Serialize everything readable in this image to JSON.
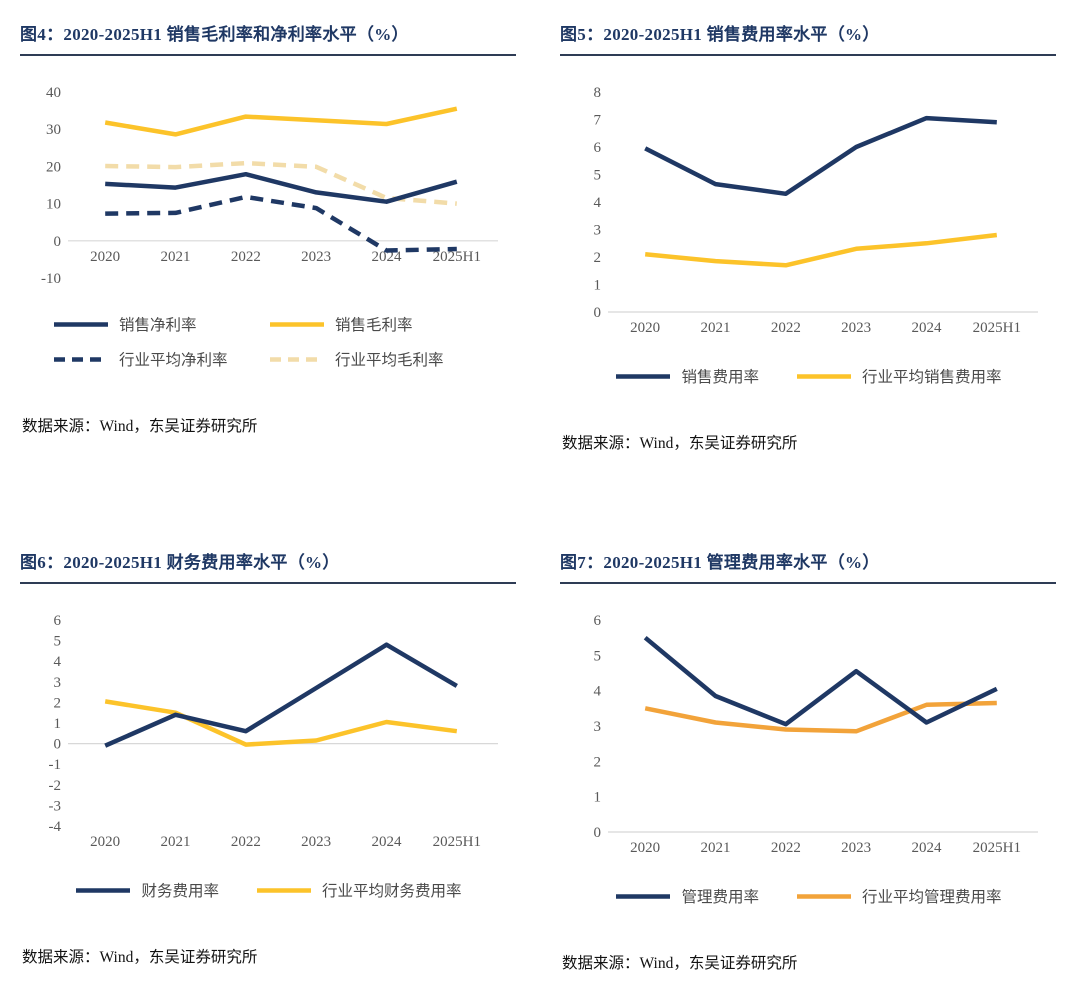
{
  "colors": {
    "navy": "#1F3864",
    "yellow": "#FCC32A",
    "tan": "#F2DCA9",
    "orange": "#F2A33A",
    "title_text": "#1F3864",
    "title_rule": "#2E3C55",
    "axis_text": "#595959",
    "zero_line": "#D8D8D8",
    "source_text": "#121212"
  },
  "chart_data": [
    {
      "id": "fig4",
      "type": "line",
      "title": "图4：2020-2025H1 销售毛利率和净利率水平（%）",
      "categories": [
        "2020",
        "2021",
        "2022",
        "2023",
        "2024",
        "2025H1"
      ],
      "ylim": [
        -10,
        40
      ],
      "yticks": [
        40,
        30,
        20,
        10,
        0,
        -10
      ],
      "grid": "zero-line-only",
      "legend_position": "bottom",
      "legend_columns": 2,
      "xlabels_at_zero": true,
      "series": [
        {
          "name": "销售净利率",
          "color": "#1F3864",
          "style": "solid",
          "values": [
            15.3,
            14.3,
            17.9,
            13.0,
            10.5,
            15.9
          ]
        },
        {
          "name": "销售毛利率",
          "color": "#FCC32A",
          "style": "solid",
          "values": [
            31.8,
            28.6,
            33.4,
            32.4,
            31.4,
            35.5
          ]
        },
        {
          "name": "行业平均净利率",
          "color": "#1F3864",
          "style": "dashed",
          "values": [
            7.3,
            7.5,
            11.8,
            8.8,
            -2.6,
            -2.2
          ]
        },
        {
          "name": "行业平均毛利率",
          "color": "#F2DCA9",
          "style": "dashed",
          "values": [
            20.1,
            19.8,
            20.9,
            19.9,
            11.5,
            10.0
          ]
        }
      ],
      "source": "数据来源：Wind，东吴证券研究所"
    },
    {
      "id": "fig5",
      "type": "line",
      "title": "图5：2020-2025H1 销售费用率水平（%）",
      "categories": [
        "2020",
        "2021",
        "2022",
        "2023",
        "2024",
        "2025H1"
      ],
      "ylim": [
        0,
        8
      ],
      "yticks": [
        8,
        7,
        6,
        5,
        4,
        3,
        2,
        1,
        0
      ],
      "grid": "zero-line-only",
      "legend_position": "bottom",
      "legend_columns": 1,
      "xlabels_at_zero": false,
      "series": [
        {
          "name": "销售费用率",
          "color": "#1F3864",
          "style": "solid",
          "values": [
            5.95,
            4.65,
            4.3,
            6.0,
            7.05,
            6.9
          ]
        },
        {
          "name": "行业平均销售费用率",
          "color": "#FCC32A",
          "style": "solid",
          "values": [
            2.1,
            1.85,
            1.7,
            2.3,
            2.5,
            2.8
          ]
        }
      ],
      "source": "数据来源：Wind，东吴证券研究所"
    },
    {
      "id": "fig6",
      "type": "line",
      "title": "图6：2020-2025H1 财务费用率水平（%）",
      "categories": [
        "2020",
        "2021",
        "2022",
        "2023",
        "2024",
        "2025H1"
      ],
      "ylim": [
        -4,
        6
      ],
      "yticks": [
        6,
        5,
        4,
        3,
        2,
        1,
        0,
        -1,
        -2,
        -3,
        -4
      ],
      "grid": "zero-line-only",
      "legend_position": "bottom",
      "legend_columns": 1,
      "xlabels_at_zero": false,
      "series": [
        {
          "name": "财务费用率",
          "color": "#1F3864",
          "style": "solid",
          "values": [
            -0.1,
            1.4,
            0.6,
            2.7,
            4.8,
            2.8
          ]
        },
        {
          "name": "行业平均财务费用率",
          "color": "#FCC32A",
          "style": "solid",
          "values": [
            2.05,
            1.5,
            -0.05,
            0.15,
            1.05,
            0.6
          ]
        }
      ],
      "source": "数据来源：Wind，东吴证券研究所"
    },
    {
      "id": "fig7",
      "type": "line",
      "title": "图7：2020-2025H1 管理费用率水平（%）",
      "categories": [
        "2020",
        "2021",
        "2022",
        "2023",
        "2024",
        "2025H1"
      ],
      "ylim": [
        0,
        6
      ],
      "yticks": [
        6,
        5,
        4,
        3,
        2,
        1,
        0
      ],
      "grid": "zero-line-only",
      "legend_position": "bottom",
      "legend_columns": 1,
      "xlabels_at_zero": false,
      "series": [
        {
          "name": "管理费用率",
          "color": "#1F3864",
          "style": "solid",
          "values": [
            5.5,
            3.85,
            3.05,
            4.55,
            3.1,
            4.05
          ]
        },
        {
          "name": "行业平均管理费用率",
          "color": "#F2A33A",
          "style": "solid",
          "values": [
            3.5,
            3.1,
            2.9,
            2.85,
            3.6,
            3.65
          ]
        }
      ],
      "source": "数据来源：Wind，东吴证券研究所"
    }
  ]
}
